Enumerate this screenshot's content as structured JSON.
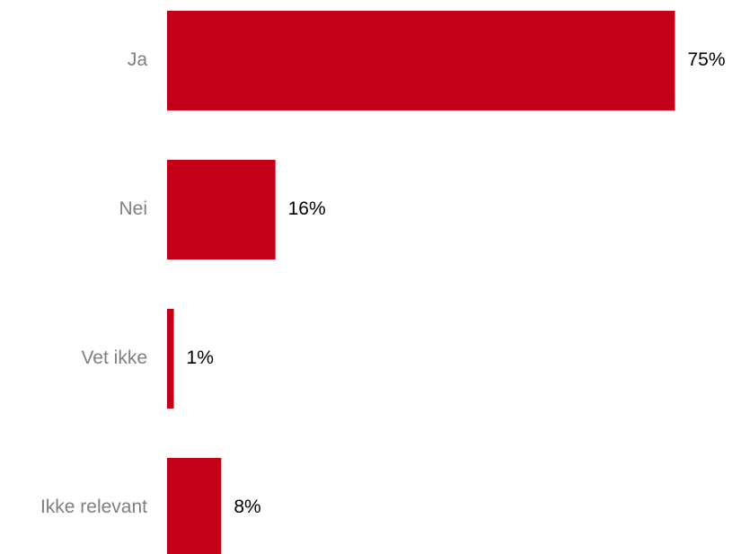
{
  "chart_data": {
    "type": "bar",
    "orientation": "horizontal",
    "categories": [
      "Ja",
      "Nei",
      "Vet ikke",
      "Ikke relevant"
    ],
    "values": [
      75,
      16,
      1,
      8
    ],
    "value_labels": [
      "75%",
      "16%",
      "1%",
      "8%"
    ],
    "unit": "%",
    "xlim": [
      0,
      100
    ],
    "grid": false,
    "legend": "none",
    "bar_color": "#c40018"
  }
}
